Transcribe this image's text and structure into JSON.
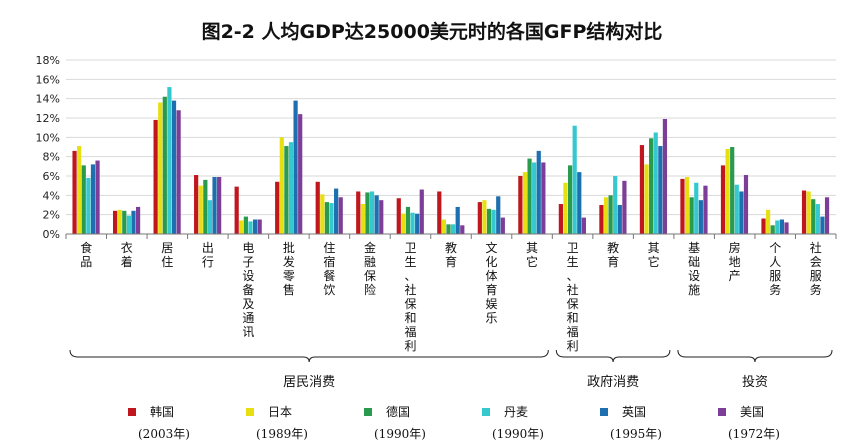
{
  "chart_data": {
    "type": "bar",
    "title": "图2-2 人均GDP达25000美元时的各国GFP结构对比",
    "ylim": [
      0,
      18
    ],
    "yticks": [
      "0%",
      "2%",
      "4%",
      "6%",
      "8%",
      "10%",
      "12%",
      "14%",
      "16%",
      "18%"
    ],
    "categories": [
      "食品",
      "衣着",
      "居住",
      "出行",
      "电子设备及通讯",
      "批发零售",
      "住宿餐饮",
      "金融保险",
      "卫生、社保和福利",
      "教育",
      "文化体育娱乐",
      "其它",
      "卫生、社保和福利",
      "教育",
      "其它",
      "基础设施",
      "房地产",
      "个人服务",
      "社会服务"
    ],
    "groups": [
      {
        "label": "居民消费",
        "from": 0,
        "to": 11
      },
      {
        "label": "政府消费",
        "from": 12,
        "to": 14
      },
      {
        "label": "投资",
        "from": 15,
        "to": 18
      }
    ],
    "series": [
      {
        "name": "韩国",
        "year": "(2003年)",
        "color": "#c0161d",
        "values": [
          8.6,
          2.4,
          11.8,
          6.1,
          4.9,
          5.4,
          5.4,
          4.4,
          3.7,
          4.4,
          3.3,
          6.0,
          3.1,
          3.0,
          9.2,
          5.7,
          7.1,
          1.6,
          4.5
        ]
      },
      {
        "name": "日本",
        "year": "(1989年)",
        "color": "#e8df12",
        "values": [
          9.1,
          2.5,
          13.6,
          5.0,
          1.4,
          10.0,
          4.1,
          3.1,
          2.1,
          1.5,
          3.5,
          6.4,
          5.3,
          3.8,
          7.2,
          5.9,
          8.8,
          2.5,
          4.4
        ]
      },
      {
        "name": "德国",
        "year": "(1990年)",
        "color": "#2a9a4e",
        "values": [
          7.1,
          2.4,
          14.2,
          5.6,
          1.8,
          9.1,
          3.3,
          4.3,
          2.8,
          1.0,
          2.6,
          7.8,
          7.1,
          4.0,
          9.9,
          3.8,
          9.0,
          0.9,
          3.6
        ]
      },
      {
        "name": "丹麦",
        "year": "(1990年)",
        "color": "#35c9cf",
        "values": [
          5.8,
          1.9,
          15.2,
          3.5,
          1.3,
          9.5,
          3.2,
          4.4,
          2.2,
          1.0,
          2.5,
          7.4,
          11.2,
          6.0,
          10.5,
          5.3,
          5.1,
          1.4,
          3.1
        ]
      },
      {
        "name": "英国",
        "year": "(1995年)",
        "color": "#1e6faf",
        "values": [
          7.2,
          2.4,
          13.8,
          5.9,
          1.5,
          13.8,
          4.7,
          4.0,
          2.1,
          2.8,
          3.9,
          8.6,
          6.4,
          3.0,
          9.1,
          3.5,
          4.4,
          1.5,
          1.8
        ]
      },
      {
        "name": "美国",
        "year": "(1972年)",
        "color": "#7d3e97",
        "values": [
          7.6,
          2.8,
          12.8,
          5.9,
          1.5,
          12.4,
          3.8,
          3.5,
          4.6,
          0.9,
          1.7,
          7.4,
          1.7,
          5.5,
          11.9,
          5.0,
          6.1,
          1.2,
          3.8
        ]
      }
    ]
  }
}
